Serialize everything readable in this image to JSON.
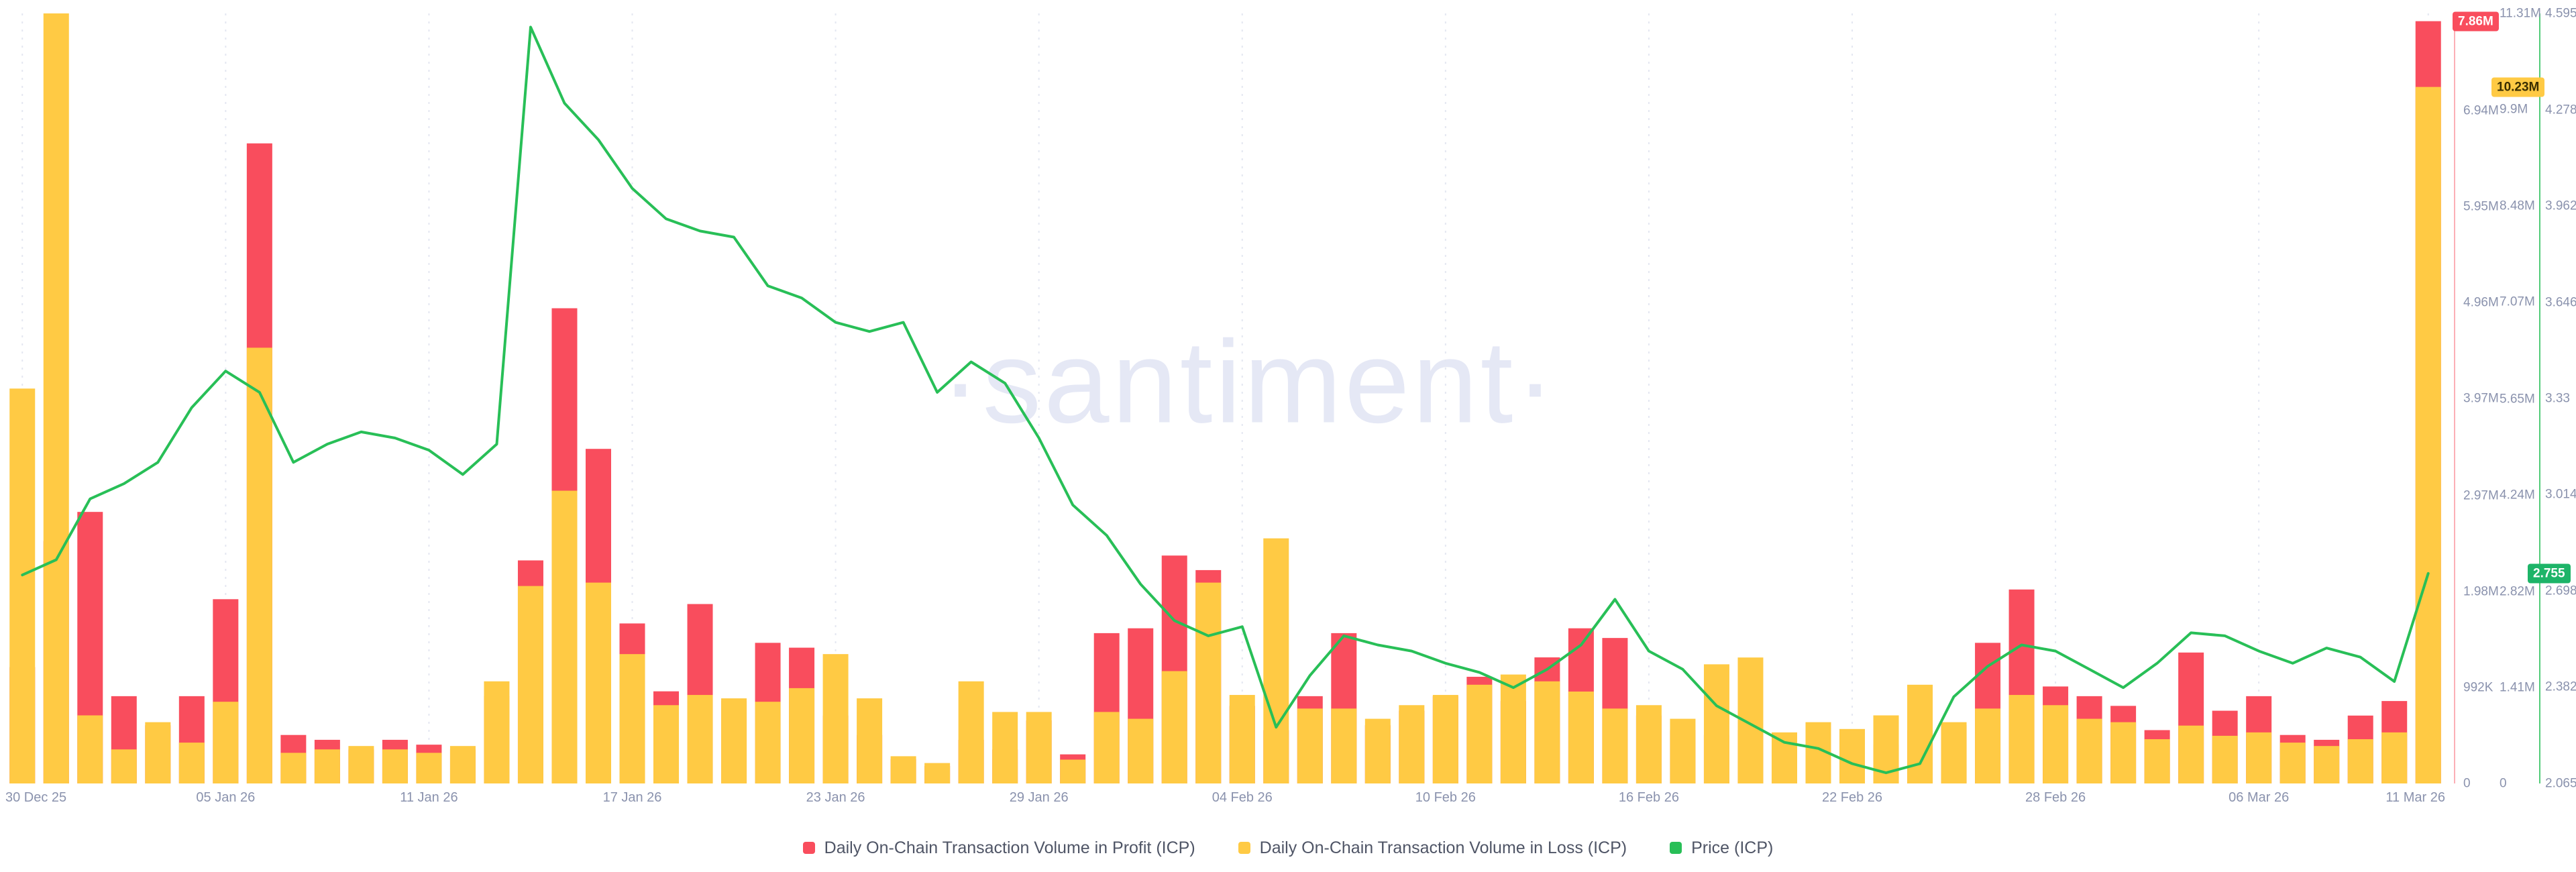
{
  "watermark": "·santiment·",
  "colors": {
    "profit": "#f94d5d",
    "loss": "#ffca44",
    "price": "#28bf57",
    "grid": "#e4e7f1",
    "axis_text": "#8a92ad",
    "legend_text": "#4f5566",
    "watermark": "#e5e8f5",
    "badge_profit_bg": "#f94d5d",
    "badge_profit_text": "#ffffff",
    "badge_loss_bg": "#ffca44",
    "badge_loss_text": "#3a2f00",
    "badge_price_bg": "#1db468",
    "badge_price_text": "#ffffff"
  },
  "legend": {
    "items": [
      {
        "id": "profit",
        "label": "Daily On-Chain Transaction Volume in Profit (ICP)"
      },
      {
        "id": "loss",
        "label": "Daily On-Chain Transaction Volume in Loss (ICP)"
      },
      {
        "id": "price",
        "label": "Price (ICP)"
      }
    ]
  },
  "axes": {
    "profit": {
      "unit": "ICP",
      "max_millions": 7.94,
      "ticks": [
        {
          "label": "0",
          "v": 0
        },
        {
          "label": "992K",
          "v": 0.992
        },
        {
          "label": "1.98M",
          "v": 1.98
        },
        {
          "label": "2.97M",
          "v": 2.97
        },
        {
          "label": "3.97M",
          "v": 3.97
        },
        {
          "label": "4.96M",
          "v": 4.96
        },
        {
          "label": "5.95M",
          "v": 5.95
        },
        {
          "label": "6.94M",
          "v": 6.94
        }
      ],
      "badge": {
        "label": "7.86M",
        "v": 7.86
      }
    },
    "loss": {
      "unit": "ICP",
      "max_millions": 11.31,
      "ticks": [
        {
          "label": "0",
          "v": 0
        },
        {
          "label": "1.41M",
          "v": 1.41
        },
        {
          "label": "2.82M",
          "v": 2.82
        },
        {
          "label": "4.24M",
          "v": 4.24
        },
        {
          "label": "5.65M",
          "v": 5.65
        },
        {
          "label": "7.07M",
          "v": 7.07
        },
        {
          "label": "8.48M",
          "v": 8.48
        },
        {
          "label": "9.9M",
          "v": 9.9
        },
        {
          "label": "11.31M",
          "v": 11.31
        }
      ],
      "badge": {
        "label": "10.23M",
        "v": 10.23
      }
    },
    "price": {
      "unit": "USD",
      "min": 2.065,
      "max": 4.595,
      "ticks": [
        {
          "label": "2.065",
          "v": 2.065
        },
        {
          "label": "2.382",
          "v": 2.382
        },
        {
          "label": "2.698",
          "v": 2.698
        },
        {
          "label": "3.014",
          "v": 3.014
        },
        {
          "label": "3.33",
          "v": 3.33
        },
        {
          "label": "3.646",
          "v": 3.646
        },
        {
          "label": "3.962",
          "v": 3.962
        },
        {
          "label": "4.278",
          "v": 4.278
        },
        {
          "label": "4.595",
          "v": 4.595
        }
      ],
      "badge": {
        "label": "2.755",
        "v": 2.755
      }
    }
  },
  "x_axis": {
    "tick_labels": [
      {
        "label": "30 Dec 25",
        "i": 0
      },
      {
        "label": "05 Jan 26",
        "i": 6
      },
      {
        "label": "11 Jan 26",
        "i": 12
      },
      {
        "label": "17 Jan 26",
        "i": 18
      },
      {
        "label": "23 Jan 26",
        "i": 24
      },
      {
        "label": "29 Jan 26",
        "i": 30
      },
      {
        "label": "04 Feb 26",
        "i": 36
      },
      {
        "label": "10 Feb 26",
        "i": 42
      },
      {
        "label": "16 Feb 26",
        "i": 48
      },
      {
        "label": "22 Feb 26",
        "i": 54
      },
      {
        "label": "28 Feb 26",
        "i": 60
      },
      {
        "label": "06 Mar 26",
        "i": 66
      },
      {
        "label": "11 Mar 26",
        "i": 71
      }
    ]
  },
  "chart_data": {
    "type": "bar",
    "subtype": "dual-axis-bars-with-price-line",
    "grid": "vertical-dashed",
    "legend_position": "bottom",
    "x": [
      "30 Dec 25",
      "31 Dec 25",
      "01 Jan 26",
      "02 Jan 26",
      "03 Jan 26",
      "04 Jan 26",
      "05 Jan 26",
      "06 Jan 26",
      "07 Jan 26",
      "08 Jan 26",
      "09 Jan 26",
      "10 Jan 26",
      "11 Jan 26",
      "12 Jan 26",
      "13 Jan 26",
      "14 Jan 26",
      "15 Jan 26",
      "16 Jan 26",
      "17 Jan 26",
      "18 Jan 26",
      "19 Jan 26",
      "20 Jan 26",
      "21 Jan 26",
      "22 Jan 26",
      "23 Jan 26",
      "24 Jan 26",
      "25 Jan 26",
      "26 Jan 26",
      "27 Jan 26",
      "28 Jan 26",
      "29 Jan 26",
      "30 Jan 26",
      "31 Jan 26",
      "01 Feb 26",
      "02 Feb 26",
      "03 Feb 26",
      "04 Feb 26",
      "05 Feb 26",
      "06 Feb 26",
      "07 Feb 26",
      "08 Feb 26",
      "09 Feb 26",
      "10 Feb 26",
      "11 Feb 26",
      "12 Feb 26",
      "13 Feb 26",
      "14 Feb 26",
      "15 Feb 26",
      "16 Feb 26",
      "17 Feb 26",
      "18 Feb 26",
      "19 Feb 26",
      "20 Feb 26",
      "21 Feb 26",
      "22 Feb 26",
      "23 Feb 26",
      "24 Feb 26",
      "25 Feb 26",
      "26 Feb 26",
      "27 Feb 26",
      "28 Feb 26",
      "01 Mar 26",
      "02 Mar 26",
      "03 Mar 26",
      "04 Mar 26",
      "05 Mar 26",
      "06 Mar 26",
      "07 Mar 26",
      "08 Mar 26",
      "09 Mar 26",
      "10 Mar 26",
      "11 Mar 26"
    ],
    "series": [
      {
        "name": "Daily On-Chain Transaction Volume in Profit (ICP)",
        "type": "bar",
        "axis": "profit",
        "color_key": "profit",
        "unit": "million ICP",
        "values_m": [
          1.2,
          2.5,
          2.8,
          0.9,
          0.6,
          0.9,
          1.9,
          6.6,
          0.5,
          0.45,
          0.35,
          0.45,
          0.4,
          0.35,
          0.9,
          2.3,
          4.9,
          3.45,
          1.65,
          0.95,
          1.85,
          0.85,
          1.45,
          1.4,
          0.7,
          0.5,
          0.25,
          0.18,
          0.45,
          0.35,
          0.65,
          0.3,
          1.55,
          1.6,
          2.35,
          2.2,
          0.8,
          0.55,
          0.9,
          1.55,
          0.6,
          0.75,
          0.9,
          1.1,
          0.85,
          1.3,
          1.6,
          1.5,
          0.7,
          0.55,
          0.5,
          0.55,
          0.35,
          0.5,
          0.35,
          0.4,
          0.55,
          0.6,
          1.45,
          2.0,
          1.0,
          0.9,
          0.8,
          0.55,
          1.35,
          0.75,
          0.9,
          0.5,
          0.45,
          0.7,
          0.85,
          7.86
        ]
      },
      {
        "name": "Daily On-Chain Transaction Volume in Loss (ICP)",
        "type": "bar",
        "axis": "loss",
        "color_key": "loss",
        "unit": "million ICP",
        "values_m": [
          5.8,
          11.31,
          1.0,
          0.5,
          0.9,
          0.6,
          1.2,
          6.4,
          0.45,
          0.5,
          0.55,
          0.5,
          0.45,
          0.55,
          1.5,
          2.9,
          4.3,
          2.95,
          1.9,
          1.15,
          1.3,
          1.25,
          1.2,
          1.4,
          1.9,
          1.25,
          0.4,
          0.3,
          1.5,
          1.05,
          1.05,
          0.35,
          1.05,
          0.95,
          1.65,
          2.95,
          1.3,
          3.6,
          1.1,
          1.1,
          0.95,
          1.15,
          1.3,
          1.45,
          1.6,
          1.5,
          1.35,
          1.1,
          1.15,
          0.95,
          1.75,
          1.85,
          0.75,
          0.9,
          0.8,
          1.0,
          1.45,
          0.9,
          1.1,
          1.3,
          1.15,
          0.95,
          0.9,
          0.65,
          0.85,
          0.7,
          0.75,
          0.6,
          0.55,
          0.65,
          0.75,
          10.23
        ]
      },
      {
        "name": "Price (ICP)",
        "type": "line",
        "axis": "price",
        "color_key": "price",
        "unit": "USD",
        "values": [
          2.75,
          2.8,
          3.0,
          3.05,
          3.12,
          3.3,
          3.42,
          3.35,
          3.12,
          3.18,
          3.22,
          3.2,
          3.16,
          3.08,
          3.18,
          4.55,
          4.3,
          4.18,
          4.02,
          3.92,
          3.88,
          3.86,
          3.7,
          3.66,
          3.58,
          3.55,
          3.58,
          3.35,
          3.45,
          3.38,
          3.2,
          2.98,
          2.88,
          2.72,
          2.6,
          2.55,
          2.58,
          2.25,
          2.42,
          2.55,
          2.52,
          2.5,
          2.46,
          2.43,
          2.38,
          2.44,
          2.52,
          2.67,
          2.5,
          2.44,
          2.32,
          2.26,
          2.2,
          2.18,
          2.13,
          2.1,
          2.13,
          2.35,
          2.45,
          2.52,
          2.5,
          2.44,
          2.38,
          2.46,
          2.56,
          2.55,
          2.5,
          2.46,
          2.51,
          2.48,
          2.4,
          2.755
        ]
      }
    ],
    "latest_values": {
      "profit_label": "7.86M",
      "loss_label": "10.23M",
      "price_label": "2.755"
    }
  }
}
